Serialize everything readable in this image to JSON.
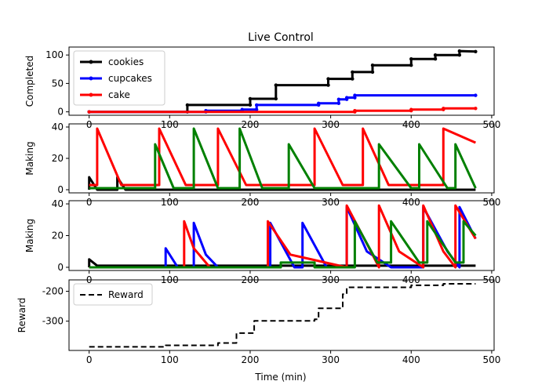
{
  "figure": {
    "title": "Live Control",
    "xlabel": "Time (min)"
  },
  "chart_data": [
    {
      "type": "line",
      "ylabel": "Completed",
      "xlim": [
        -25,
        503
      ],
      "ylim": [
        -6,
        114
      ],
      "xticks": [
        0,
        100,
        200,
        300,
        400,
        500
      ],
      "yticks": [
        0,
        50,
        100
      ],
      "legend": "upper-left",
      "series": [
        {
          "name": "cookies",
          "color": "#000000",
          "marker": true,
          "points": [
            [
              0,
              0
            ],
            [
              122,
              0
            ],
            [
              122,
              12
            ],
            [
              200,
              12
            ],
            [
              200,
              23
            ],
            [
              232,
              23
            ],
            [
              232,
              47
            ],
            [
              297,
              47
            ],
            [
              297,
              58
            ],
            [
              327,
              58
            ],
            [
              327,
              70
            ],
            [
              352,
              70
            ],
            [
              352,
              82
            ],
            [
              400,
              82
            ],
            [
              400,
              93
            ],
            [
              430,
              93
            ],
            [
              430,
              100
            ],
            [
              460,
              100
            ],
            [
              460,
              107
            ],
            [
              480,
              106
            ]
          ]
        },
        {
          "name": "cupcakes",
          "color": "#0000ff",
          "marker": true,
          "points": [
            [
              0,
              0
            ],
            [
              145,
              0
            ],
            [
              145,
              2
            ],
            [
              190,
              2
            ],
            [
              190,
              4
            ],
            [
              208,
              4
            ],
            [
              208,
              12
            ],
            [
              285,
              12
            ],
            [
              285,
              15
            ],
            [
              310,
              15
            ],
            [
              310,
              22
            ],
            [
              320,
              22
            ],
            [
              320,
              25
            ],
            [
              330,
              25
            ],
            [
              330,
              29
            ],
            [
              480,
              29
            ]
          ]
        },
        {
          "name": "cake",
          "color": "#ff0000",
          "marker": true,
          "points": [
            [
              0,
              0
            ],
            [
              330,
              0
            ],
            [
              330,
              2
            ],
            [
              400,
              2
            ],
            [
              400,
              4
            ],
            [
              440,
              4
            ],
            [
              440,
              6
            ],
            [
              480,
              6
            ]
          ]
        }
      ]
    },
    {
      "type": "line",
      "ylabel": "Making",
      "xlim": [
        -25,
        503
      ],
      "ylim": [
        -2,
        42
      ],
      "xticks": [
        0,
        100,
        200,
        300,
        400,
        500
      ],
      "yticks": [
        0,
        20,
        40
      ],
      "series": [
        {
          "color": "#000000",
          "points": [
            [
              0,
              0
            ],
            [
              0,
              8
            ],
            [
              10,
              0
            ],
            [
              35,
              0
            ],
            [
              35,
              8
            ],
            [
              45,
              0
            ],
            [
              480,
              0
            ]
          ]
        },
        {
          "color": "#ff0000",
          "points": [
            [
              0,
              3
            ],
            [
              10,
              3
            ],
            [
              10,
              39
            ],
            [
              40,
              3
            ],
            [
              87,
              3
            ],
            [
              87,
              39
            ],
            [
              120,
              3
            ],
            [
              160,
              3
            ],
            [
              160,
              39
            ],
            [
              195,
              3
            ],
            [
              280,
              3
            ],
            [
              280,
              39
            ],
            [
              315,
              3
            ],
            [
              340,
              3
            ],
            [
              340,
              39
            ],
            [
              372,
              3
            ],
            [
              440,
              3
            ],
            [
              440,
              39
            ],
            [
              480,
              30
            ]
          ]
        },
        {
          "color": "#008000",
          "points": [
            [
              0,
              1
            ],
            [
              82,
              1
            ],
            [
              82,
              29
            ],
            [
              105,
              1
            ],
            [
              130,
              1
            ],
            [
              130,
              39
            ],
            [
              160,
              1
            ],
            [
              187,
              1
            ],
            [
              187,
              39
            ],
            [
              215,
              1
            ],
            [
              248,
              1
            ],
            [
              248,
              29
            ],
            [
              280,
              1
            ],
            [
              360,
              1
            ],
            [
              360,
              29
            ],
            [
              400,
              1
            ],
            [
              410,
              1
            ],
            [
              410,
              29
            ],
            [
              445,
              1
            ],
            [
              455,
              1
            ],
            [
              455,
              29
            ],
            [
              480,
              1
            ]
          ]
        }
      ]
    },
    {
      "type": "line",
      "ylabel": "Making",
      "xlim": [
        -25,
        503
      ],
      "ylim": [
        -2,
        42
      ],
      "xticks": [
        0,
        100,
        200,
        300,
        400,
        500
      ],
      "yticks": [
        0,
        20,
        40
      ],
      "series": [
        {
          "color": "#000000",
          "points": [
            [
              0,
              0
            ],
            [
              0,
              5
            ],
            [
              10,
              1
            ],
            [
              480,
              1
            ]
          ]
        },
        {
          "color": "#0000ff",
          "points": [
            [
              0,
              0
            ],
            [
              95,
              0
            ],
            [
              95,
              12
            ],
            [
              110,
              0
            ],
            [
              130,
              0
            ],
            [
              130,
              28
            ],
            [
              145,
              8
            ],
            [
              160,
              0
            ],
            [
              225,
              0
            ],
            [
              225,
              28
            ],
            [
              255,
              0
            ],
            [
              265,
              0
            ],
            [
              265,
              28
            ],
            [
              295,
              0
            ],
            [
              320,
              0
            ],
            [
              320,
              38
            ],
            [
              345,
              10
            ],
            [
              375,
              0
            ],
            [
              415,
              0
            ],
            [
              415,
              38
            ],
            [
              445,
              10
            ],
            [
              460,
              0
            ],
            [
              460,
              38
            ],
            [
              480,
              18
            ]
          ]
        },
        {
          "color": "#ff0000",
          "points": [
            [
              0,
              0
            ],
            [
              118,
              0
            ],
            [
              118,
              29
            ],
            [
              130,
              12
            ],
            [
              150,
              0
            ],
            [
              222,
              0
            ],
            [
              222,
              29
            ],
            [
              250,
              8
            ],
            [
              320,
              0
            ],
            [
              320,
              39
            ],
            [
              350,
              10
            ],
            [
              360,
              0
            ],
            [
              360,
              39
            ],
            [
              385,
              10
            ],
            [
              415,
              0
            ],
            [
              415,
              39
            ],
            [
              440,
              10
            ],
            [
              455,
              0
            ],
            [
              455,
              39
            ],
            [
              480,
              18
            ]
          ]
        },
        {
          "color": "#008000",
          "points": [
            [
              0,
              0
            ],
            [
              238,
              0
            ],
            [
              238,
              3
            ],
            [
              280,
              3
            ],
            [
              280,
              0
            ],
            [
              330,
              0
            ],
            [
              330,
              29
            ],
            [
              358,
              3
            ],
            [
              375,
              3
            ],
            [
              375,
              29
            ],
            [
              410,
              3
            ],
            [
              420,
              3
            ],
            [
              420,
              29
            ],
            [
              455,
              3
            ],
            [
              465,
              3
            ],
            [
              465,
              29
            ],
            [
              480,
              20
            ]
          ]
        }
      ]
    },
    {
      "type": "line",
      "ylabel": "Reward",
      "xlim": [
        -25,
        503
      ],
      "ylim": [
        -398,
        -162
      ],
      "xticks": [
        0,
        100,
        200,
        300,
        400,
        500
      ],
      "yticks": [
        -300,
        -200
      ],
      "legend": "upper-left",
      "series": [
        {
          "name": "Reward",
          "color": "#000000",
          "dash": true,
          "points": [
            [
              0,
              -386
            ],
            [
              95,
              -386
            ],
            [
              95,
              -381
            ],
            [
              160,
              -381
            ],
            [
              160,
              -373
            ],
            [
              183,
              -373
            ],
            [
              183,
              -340
            ],
            [
              205,
              -340
            ],
            [
              205,
              -299
            ],
            [
              280,
              -299
            ],
            [
              280,
              -294
            ],
            [
              285,
              -294
            ],
            [
              285,
              -257
            ],
            [
              315,
              -257
            ],
            [
              315,
              -210
            ],
            [
              320,
              -210
            ],
            [
              320,
              -187
            ],
            [
              400,
              -187
            ],
            [
              400,
              -180
            ],
            [
              440,
              -180
            ],
            [
              440,
              -175
            ],
            [
              480,
              -175
            ]
          ]
        }
      ]
    }
  ]
}
